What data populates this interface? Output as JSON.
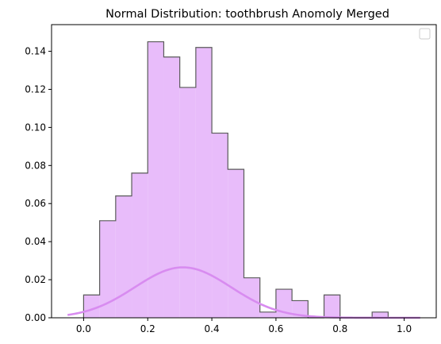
{
  "chart_data": {
    "type": "histogram",
    "title": "Normal Distribution: toothbrush Anomoly Merged",
    "xlabel": "",
    "ylabel": "",
    "xlim": [
      -0.1,
      1.1
    ],
    "ylim": [
      0,
      0.154
    ],
    "xticks": [
      0.0,
      0.2,
      0.4,
      0.6,
      0.8,
      1.0
    ],
    "xtick_labels": [
      "0.0",
      "0.2",
      "0.4",
      "0.6",
      "0.8",
      "1.0"
    ],
    "yticks": [
      0.0,
      0.02,
      0.04,
      0.06,
      0.08,
      0.1,
      0.12,
      0.14
    ],
    "ytick_labels": [
      "0.00",
      "0.02",
      "0.04",
      "0.06",
      "0.08",
      "0.10",
      "0.12",
      "0.14"
    ],
    "bin_edges": [
      0.0,
      0.05,
      0.1,
      0.15,
      0.2,
      0.25,
      0.3,
      0.35,
      0.4,
      0.45,
      0.5,
      0.55,
      0.6,
      0.65,
      0.7,
      0.75,
      0.8,
      0.85,
      0.9,
      0.95,
      1.0
    ],
    "values": [
      0.012,
      0.051,
      0.064,
      0.076,
      0.145,
      0.137,
      0.121,
      0.142,
      0.097,
      0.078,
      0.021,
      0.003,
      0.015,
      0.009,
      0.0,
      0.012,
      0.0,
      0.0,
      0.003,
      0.0
    ],
    "fill_color": "#e8bcfa",
    "edge_color": "#5a5a5a",
    "curve": {
      "x_range": [
        -0.05,
        1.05
      ],
      "mean": 0.31,
      "std": 0.15,
      "peak": 0.0265,
      "color": "#d88cf0"
    },
    "legend": {
      "position": "upper-right",
      "entries": []
    },
    "grid": false
  }
}
